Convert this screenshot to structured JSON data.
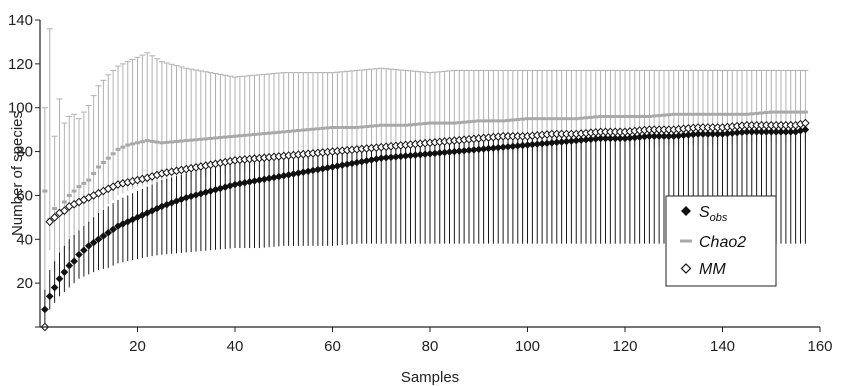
{
  "chart_data": {
    "type": "scatter",
    "title": "",
    "xlabel": "Samples",
    "ylabel": "Number of species",
    "xlim": [
      0,
      160
    ],
    "ylim": [
      0,
      140
    ],
    "xticks": [
      20,
      40,
      60,
      80,
      100,
      120,
      140,
      160
    ],
    "yticks": [
      20,
      40,
      60,
      80,
      100,
      120,
      140
    ],
    "grid": false,
    "legend_position": "right",
    "x": [
      1,
      2,
      3,
      4,
      5,
      6,
      7,
      8,
      10,
      12,
      14,
      16,
      18,
      20,
      22,
      25,
      30,
      35,
      40,
      45,
      50,
      55,
      60,
      65,
      70,
      75,
      80,
      85,
      90,
      95,
      100,
      105,
      110,
      115,
      120,
      125,
      130,
      135,
      140,
      145,
      150,
      155,
      157
    ],
    "series": [
      {
        "name": "Sobs",
        "marker": "filled-diamond",
        "color": "#111111",
        "values": [
          8,
          14,
          18,
          22,
          25,
          28,
          30,
          33,
          37,
          40,
          43,
          46,
          48,
          50,
          52,
          55,
          59,
          62,
          65,
          67,
          69,
          71,
          73,
          75,
          77,
          78,
          79,
          80,
          81,
          82,
          83,
          84,
          85,
          86,
          86,
          87,
          87,
          88,
          88,
          89,
          89,
          89,
          90
        ],
        "error_lower": [
          1,
          8,
          11,
          14,
          16,
          18,
          20,
          22,
          24,
          26,
          27,
          29,
          30,
          31,
          32,
          33,
          34,
          35,
          36,
          36,
          37,
          37,
          37,
          38,
          38,
          38,
          38,
          38,
          38,
          38,
          38,
          38,
          38,
          38,
          38,
          38,
          38,
          38,
          38,
          38,
          38,
          38,
          38
        ],
        "error_upper": [
          17,
          26,
          30,
          34,
          37,
          40,
          42,
          44,
          48,
          52,
          55,
          58,
          60,
          62,
          64,
          67,
          70,
          73,
          75,
          77,
          79,
          80,
          81,
          82,
          83,
          84,
          85,
          86,
          86,
          87,
          87,
          87,
          88,
          88,
          88,
          89,
          89,
          89,
          89,
          89,
          89,
          89,
          89
        ]
      },
      {
        "name": "Chao2",
        "marker": "gray-dash",
        "color": "#a8a8a8",
        "values": [
          62,
          49,
          54,
          52,
          57,
          60,
          62,
          64,
          67,
          73,
          77,
          81,
          83,
          84,
          85,
          84,
          85,
          86,
          87,
          88,
          89,
          90,
          91,
          91,
          92,
          92,
          93,
          93,
          94,
          94,
          95,
          95,
          95,
          96,
          96,
          96,
          97,
          97,
          97,
          97,
          98,
          98,
          98
        ],
        "error_lower": [
          8,
          35,
          25,
          21,
          29,
          35,
          40,
          43,
          47,
          52,
          56,
          60,
          62,
          64,
          65,
          66,
          67,
          69,
          70,
          71,
          72,
          73,
          74,
          75,
          76,
          77,
          77,
          78,
          79,
          79,
          80,
          80,
          81,
          81,
          82,
          82,
          83,
          83,
          83,
          84,
          84,
          84,
          84
        ],
        "error_upper": [
          100,
          136,
          87,
          104,
          93,
          96,
          97,
          95,
          101,
          110,
          115,
          119,
          121,
          123,
          125,
          121,
          118,
          116,
          114,
          115,
          116,
          116,
          116,
          117,
          118,
          117,
          116,
          117,
          117,
          117,
          117,
          117,
          117,
          117,
          117,
          117,
          117,
          117,
          117,
          117,
          117,
          117,
          117
        ]
      },
      {
        "name": "MM",
        "marker": "open-diamond",
        "color": "#111111",
        "values": [
          0,
          48,
          50,
          52,
          53,
          55,
          56,
          57,
          59,
          61,
          63,
          65,
          66,
          67,
          68,
          70,
          72,
          74,
          76,
          77,
          78,
          79,
          80,
          81,
          82,
          83,
          84,
          85,
          86,
          87,
          87,
          88,
          88,
          89,
          89,
          90,
          90,
          91,
          91,
          92,
          92,
          92,
          93
        ]
      }
    ]
  },
  "legend": {
    "items": [
      {
        "label_main": "S",
        "label_sub": "obs"
      },
      {
        "label_main": "Chao2",
        "label_sub": ""
      },
      {
        "label_main": "MM",
        "label_sub": ""
      }
    ]
  }
}
